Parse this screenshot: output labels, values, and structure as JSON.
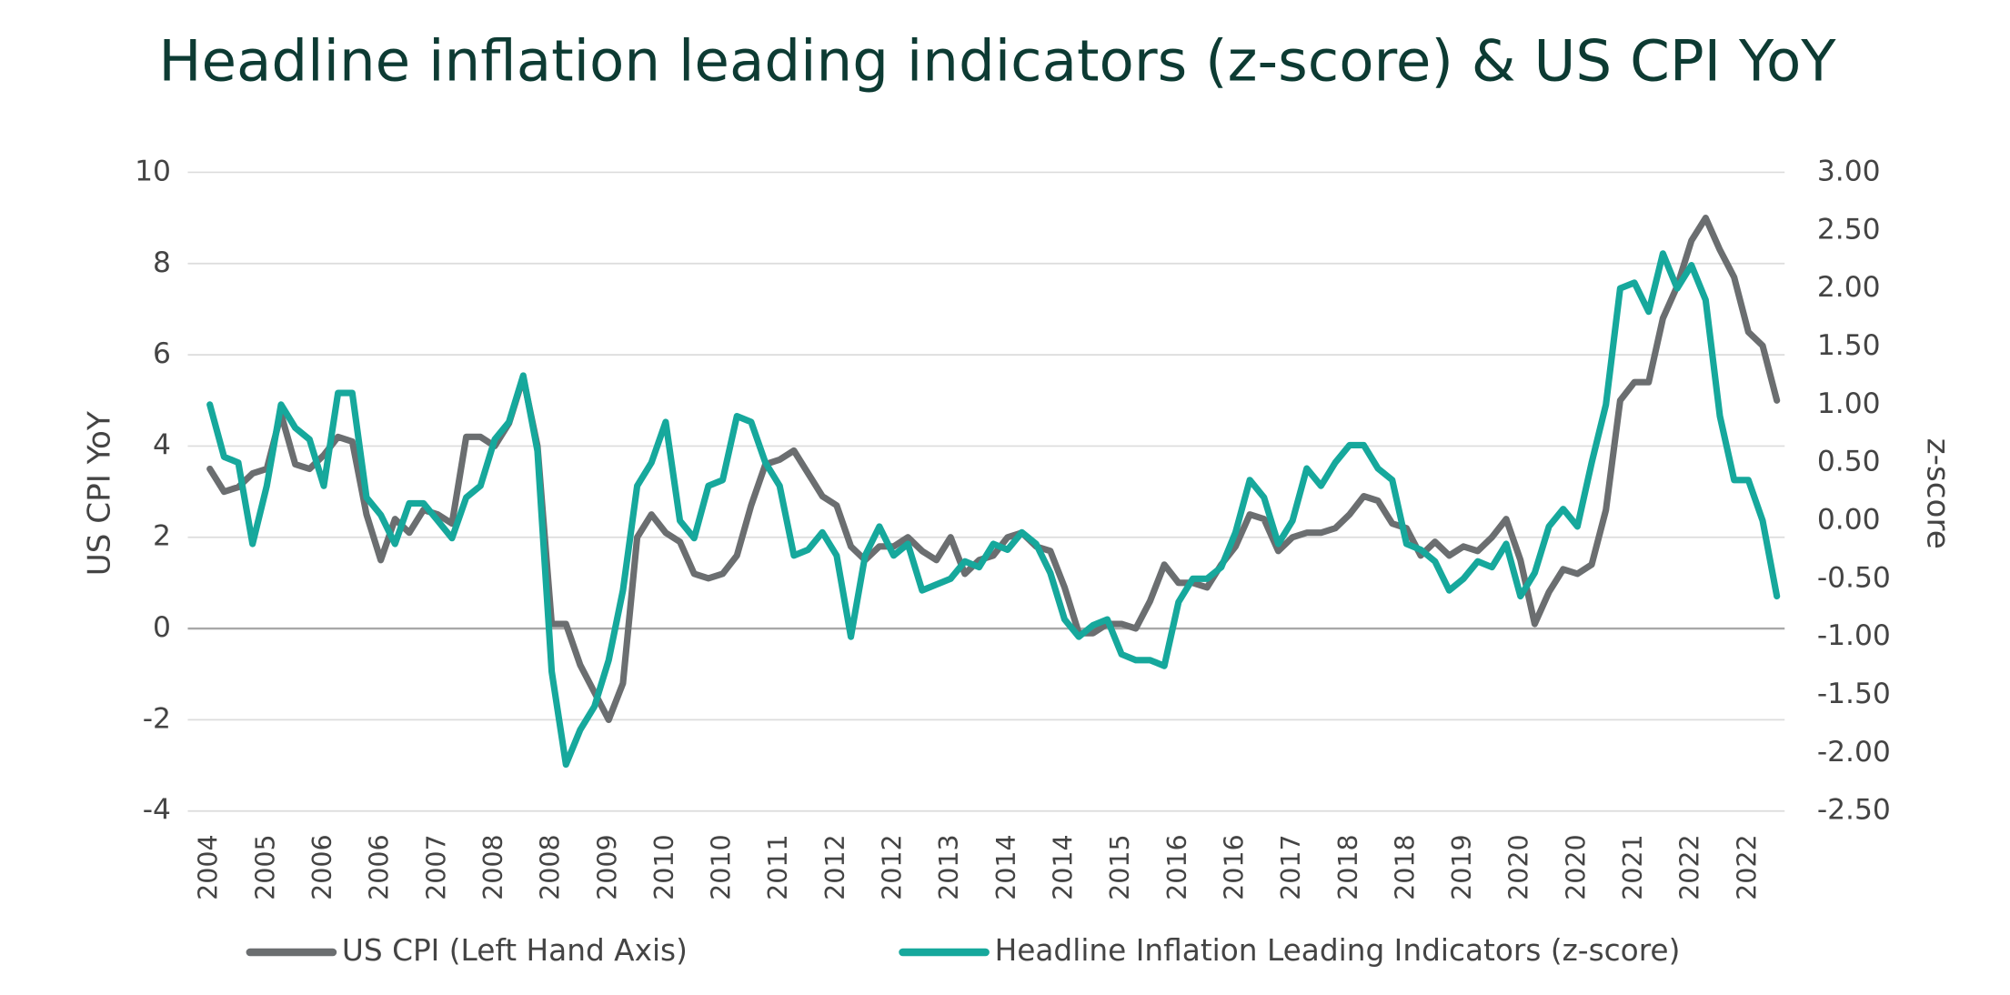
{
  "chart_data": {
    "type": "line",
    "title": "Headline inflation leading indicators (z-score) & US CPI YoY",
    "ylabel": "US CPI YoY",
    "y2label": "z-score",
    "categories": [
      "2004",
      null,
      null,
      null,
      "2005",
      null,
      null,
      null,
      "2006",
      null,
      null,
      null,
      "2006",
      null,
      null,
      null,
      "2007",
      null,
      null,
      null,
      "2008",
      null,
      null,
      null,
      "2008",
      null,
      null,
      null,
      "2009",
      null,
      null,
      null,
      "2010",
      null,
      null,
      null,
      "2010",
      null,
      null,
      null,
      "2011",
      null,
      null,
      null,
      "2012",
      null,
      null,
      null,
      "2012",
      null,
      null,
      null,
      "2013",
      null,
      null,
      null,
      "2014",
      null,
      null,
      null,
      "2014",
      null,
      null,
      null,
      "2015",
      null,
      null,
      null,
      "2016",
      null,
      null,
      null,
      "2016",
      null,
      null,
      null,
      "2017",
      null,
      null,
      null,
      "2018",
      null,
      null,
      null,
      "2018",
      null,
      null,
      null,
      "2019",
      null,
      null,
      null,
      "2020",
      null,
      null,
      null,
      "2020",
      null,
      null,
      null,
      "2021",
      null,
      null,
      null,
      "2022",
      null,
      null,
      null,
      "2022",
      null,
      null
    ],
    "series": [
      {
        "name": "US CPI (Left Hand Axis)",
        "color": "#6b6e70",
        "axis": "y",
        "values": [
          3.5,
          3.0,
          3.1,
          3.4,
          3.5,
          4.7,
          3.6,
          3.5,
          3.8,
          4.2,
          4.1,
          2.5,
          1.5,
          2.4,
          2.1,
          2.6,
          2.5,
          2.3,
          4.2,
          4.2,
          4.0,
          4.5,
          5.5,
          4.0,
          0.1,
          0.1,
          -0.8,
          -1.4,
          -2.0,
          -1.2,
          2.0,
          2.5,
          2.1,
          1.9,
          1.2,
          1.1,
          1.2,
          1.6,
          2.7,
          3.6,
          3.7,
          3.9,
          3.4,
          2.9,
          2.7,
          1.8,
          1.5,
          1.8,
          1.8,
          2.0,
          1.7,
          1.5,
          2.0,
          1.2,
          1.5,
          1.6,
          2.0,
          2.1,
          1.8,
          1.7,
          0.9,
          -0.1,
          -0.1,
          0.1,
          0.1,
          0.0,
          0.6,
          1.4,
          1.0,
          1.0,
          0.9,
          1.4,
          1.8,
          2.5,
          2.4,
          1.7,
          2.0,
          2.1,
          2.1,
          2.2,
          2.5,
          2.9,
          2.8,
          2.3,
          2.2,
          1.6,
          1.9,
          1.6,
          1.8,
          1.7,
          2.0,
          2.4,
          1.5,
          0.1,
          0.8,
          1.3,
          1.2,
          1.4,
          2.6,
          5.0,
          5.4,
          5.4,
          6.8,
          7.5,
          8.5,
          9.0,
          8.3,
          7.7,
          6.5,
          6.2,
          5.0
        ]
      },
      {
        "name": "Headline Inflation Leading Indicators (z-score)",
        "color": "#16a89c",
        "axis": "y2",
        "values": [
          1.0,
          0.55,
          0.5,
          -0.2,
          0.3,
          1.0,
          0.8,
          0.7,
          0.3,
          1.1,
          1.1,
          0.2,
          0.05,
          -0.2,
          0.15,
          0.15,
          0.0,
          -0.15,
          0.2,
          0.3,
          0.7,
          0.85,
          1.25,
          0.6,
          -1.3,
          -2.1,
          -1.8,
          -1.6,
          -1.2,
          -0.6,
          0.3,
          0.5,
          0.85,
          0.0,
          -0.15,
          0.3,
          0.35,
          0.9,
          0.85,
          0.5,
          0.3,
          -0.3,
          -0.25,
          -0.1,
          -0.3,
          -1.0,
          -0.3,
          -0.05,
          -0.3,
          -0.2,
          -0.6,
          -0.55,
          -0.5,
          -0.35,
          -0.4,
          -0.2,
          -0.25,
          -0.1,
          -0.2,
          -0.45,
          -0.85,
          -1.0,
          -0.9,
          -0.85,
          -1.15,
          -1.2,
          -1.2,
          -1.25,
          -0.7,
          -0.5,
          -0.5,
          -0.4,
          -0.1,
          0.35,
          0.2,
          -0.2,
          0.0,
          0.45,
          0.3,
          0.5,
          0.65,
          0.65,
          0.45,
          0.35,
          -0.2,
          -0.25,
          -0.35,
          -0.6,
          -0.5,
          -0.35,
          -0.4,
          -0.2,
          -0.65,
          -0.45,
          -0.05,
          0.1,
          -0.05,
          0.5,
          1.0,
          2.0,
          2.05,
          1.8,
          2.3,
          2.0,
          2.2,
          1.9,
          0.9,
          0.35,
          0.35,
          0.0,
          -0.65
        ]
      }
    ],
    "ylim": [
      -4,
      10
    ],
    "yticks": [
      -4,
      -2,
      0,
      2,
      4,
      6,
      8,
      10
    ],
    "y2lim": [
      -2.5,
      3
    ],
    "y2ticks": [
      {
        "value": -2.5,
        "label": "-2.50"
      },
      {
        "value": -2,
        "label": "-2.00"
      },
      {
        "value": -1.5,
        "label": "-1.50"
      },
      {
        "value": -1,
        "label": "-1.00"
      },
      {
        "value": -0.5,
        "label": "-0.50"
      },
      {
        "value": 0,
        "label": "0.00"
      },
      {
        "value": 0.5,
        "label": "0.50"
      },
      {
        "value": 1,
        "label": "1.00"
      },
      {
        "value": 1.5,
        "label": "1.50"
      },
      {
        "value": 2,
        "label": "2.00"
      },
      {
        "value": 2.5,
        "label": "2.50"
      },
      {
        "value": 3,
        "label": "3.00"
      }
    ],
    "grid": true,
    "legend": "bottom"
  }
}
